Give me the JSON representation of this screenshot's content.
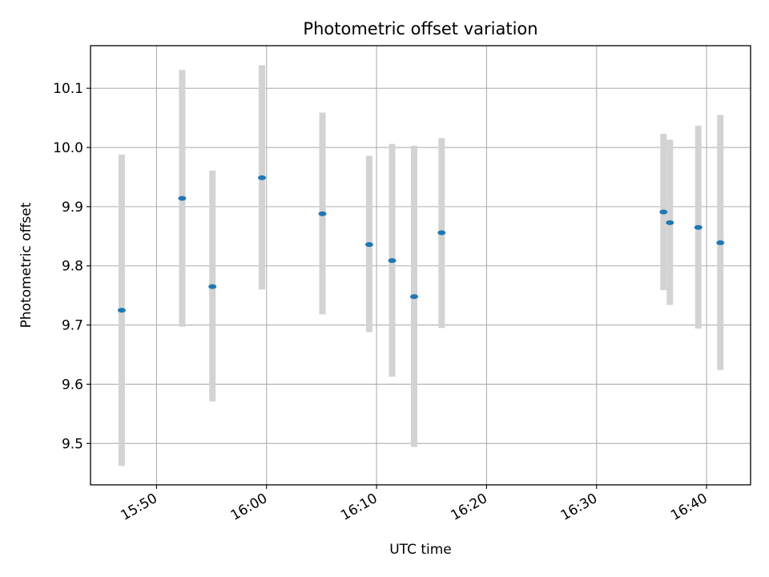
{
  "chart_data": {
    "type": "scatter",
    "title": "Photometric offset variation",
    "xlabel": "UTC time",
    "ylabel": "Photometric offset",
    "xlim": [
      "15:44:00",
      "16:44:00"
    ],
    "ylim": [
      9.43,
      10.172
    ],
    "grid": true,
    "x_ticks": [
      "15:50",
      "16:00",
      "16:10",
      "16:20",
      "16:30",
      "16:40"
    ],
    "y_ticks": [
      "9.5",
      "9.6",
      "9.7",
      "9.8",
      "9.9",
      "10.0",
      "10.1"
    ],
    "colors": {
      "marker": "#1f77b4",
      "errorbar": "#d3d3d3",
      "grid": "#b0b0b0"
    },
    "series": [
      {
        "points": [
          {
            "x": "15:46:50",
            "y": 9.725,
            "ylow": 9.462,
            "yhigh": 9.988
          },
          {
            "x": "15:52:20",
            "y": 9.914,
            "ylow": 9.697,
            "yhigh": 10.131
          },
          {
            "x": "15:55:05",
            "y": 9.765,
            "ylow": 9.571,
            "yhigh": 9.961
          },
          {
            "x": "15:59:35",
            "y": 9.949,
            "ylow": 9.76,
            "yhigh": 10.139
          },
          {
            "x": "16:05:05",
            "y": 9.888,
            "ylow": 9.718,
            "yhigh": 10.059
          },
          {
            "x": "16:09:20",
            "y": 9.836,
            "ylow": 9.688,
            "yhigh": 9.986
          },
          {
            "x": "16:11:25",
            "y": 9.809,
            "ylow": 9.613,
            "yhigh": 10.006
          },
          {
            "x": "16:13:25",
            "y": 9.748,
            "ylow": 9.494,
            "yhigh": 10.003
          },
          {
            "x": "16:15:55",
            "y": 9.856,
            "ylow": 9.695,
            "yhigh": 10.016
          },
          {
            "x": "16:36:05",
            "y": 9.891,
            "ylow": 9.759,
            "yhigh": 10.023
          },
          {
            "x": "16:36:40",
            "y": 9.873,
            "ylow": 9.734,
            "yhigh": 10.013
          },
          {
            "x": "16:39:15",
            "y": 9.865,
            "ylow": 9.694,
            "yhigh": 10.037
          },
          {
            "x": "16:41:15",
            "y": 9.839,
            "ylow": 9.624,
            "yhigh": 10.055
          }
        ]
      }
    ]
  }
}
